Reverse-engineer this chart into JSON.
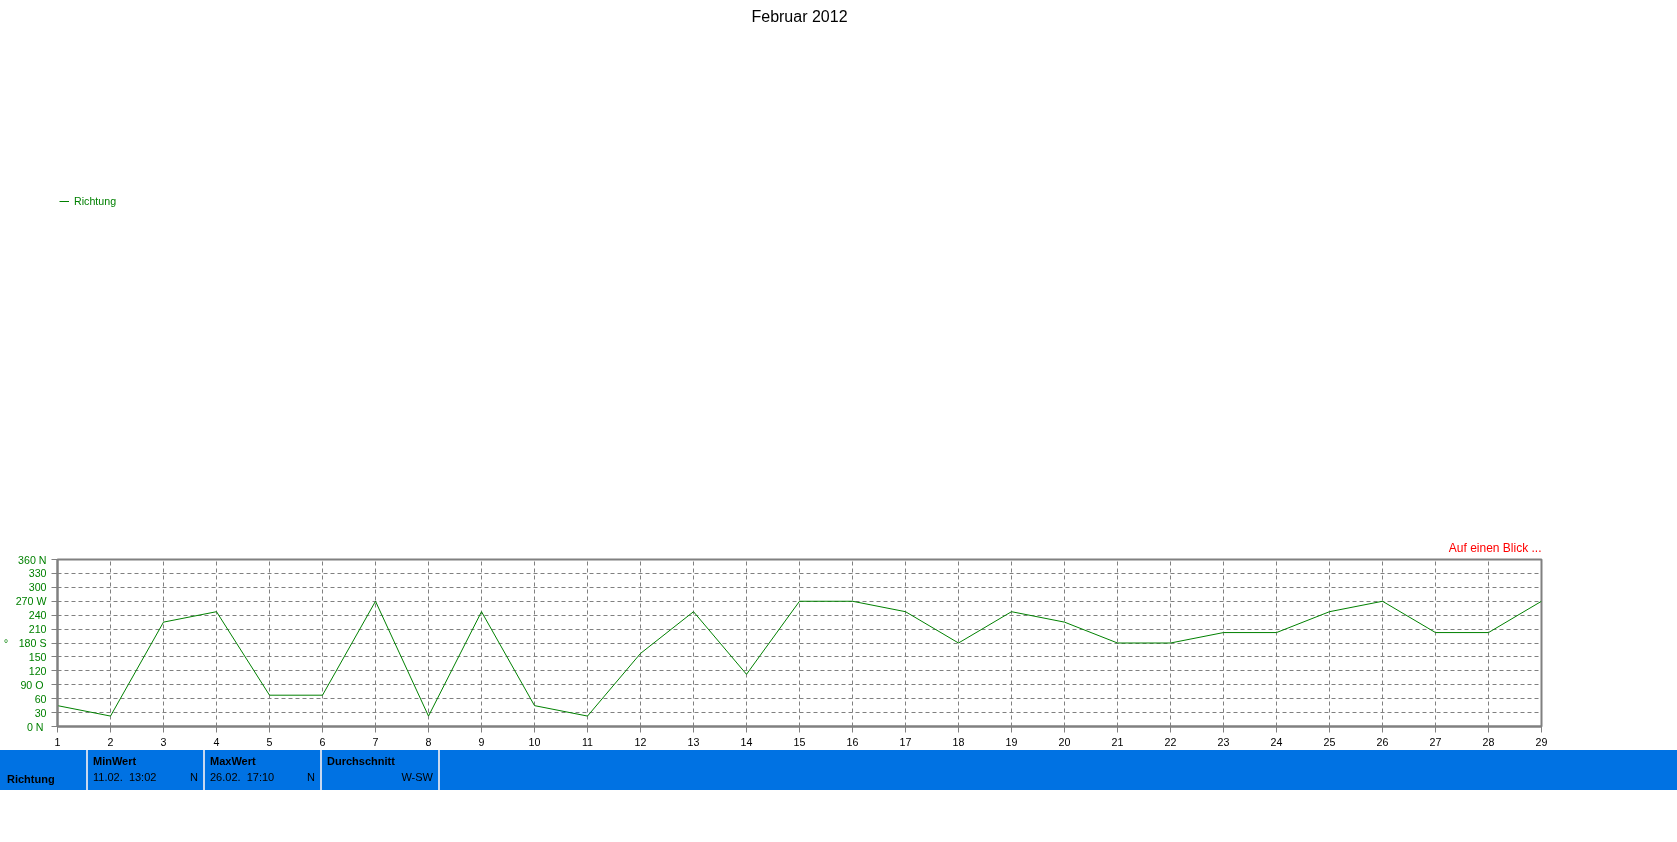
{
  "chart_data": {
    "type": "line",
    "title": "Februar 2012",
    "ylabel": "°",
    "x": [
      1,
      2,
      3,
      4,
      5,
      6,
      7,
      8,
      9,
      10,
      11,
      12,
      13,
      14,
      15,
      16,
      17,
      18,
      19,
      20,
      21,
      22,
      23,
      24,
      25,
      26,
      27,
      28,
      29
    ],
    "series": [
      {
        "name": "Richtung",
        "color": "#008000",
        "values": [
          45,
          22.5,
          225,
          247.5,
          67.5,
          67.5,
          270,
          22.5,
          247.5,
          45,
          22.5,
          157.5,
          247.5,
          112.5,
          270,
          270,
          247.5,
          180,
          247.5,
          225,
          180,
          180,
          202.5,
          202.5,
          247.5,
          270,
          202.5,
          202.5,
          270
        ]
      }
    ],
    "xlim": [
      1,
      29
    ],
    "xticks": [
      1,
      2,
      3,
      4,
      5,
      6,
      7,
      8,
      9,
      10,
      11,
      12,
      13,
      14,
      15,
      16,
      17,
      18,
      19,
      20,
      21,
      22,
      23,
      24,
      25,
      26,
      27,
      28,
      29
    ],
    "ylim": [
      0,
      360
    ],
    "yticks": [
      {
        "value": 0,
        "label": "0  N"
      },
      30,
      60,
      {
        "value": 90,
        "label": "90  O"
      },
      120,
      150,
      {
        "value": 180,
        "label": "180 S"
      },
      210,
      240,
      {
        "value": 270,
        "label": "270 W"
      },
      300,
      330,
      {
        "value": 360,
        "label": "360 N"
      }
    ],
    "grid": true,
    "legend": "top left",
    "marker": "none",
    "line_style": "solid",
    "annotations": [
      "Auf einen Blick ...",
      "Richtung",
      "MinWert",
      "11.02.  13:02",
      "N",
      "MaxWert",
      "26.02.  17:10",
      "N",
      "Durchschnitt",
      "W-SW"
    ]
  }
}
